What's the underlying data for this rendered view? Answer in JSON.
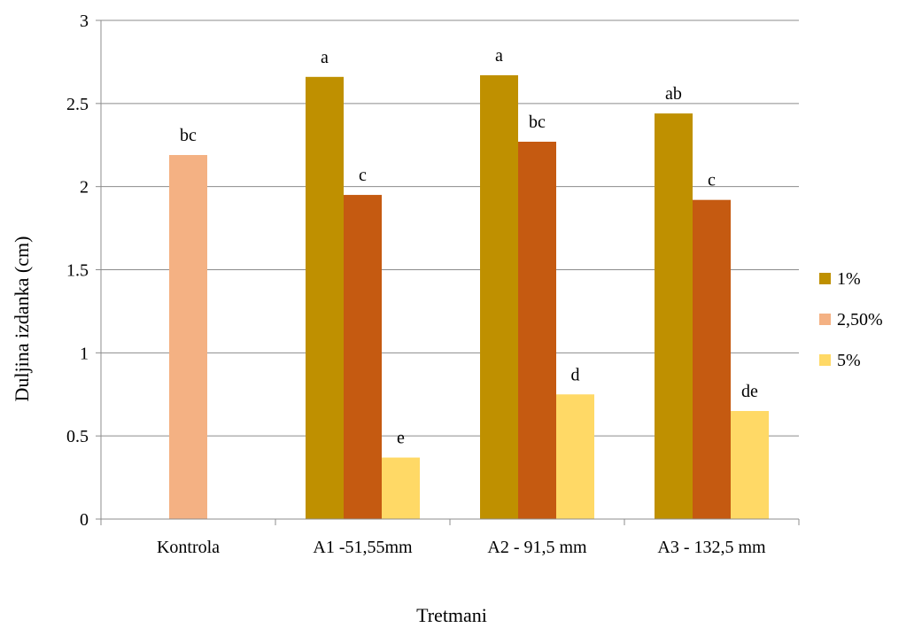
{
  "chart_data": {
    "type": "bar",
    "title": "",
    "xlabel": "Tretmani",
    "ylabel": "Duljina izdanka (cm)",
    "ylim": [
      0,
      3
    ],
    "yticks": [
      "0",
      "0.5",
      "1",
      "1.5",
      "2",
      "2.5",
      "3"
    ],
    "ytick_values": [
      0,
      0.5,
      1,
      1.5,
      2,
      2.5,
      3
    ],
    "categories": [
      "Kontrola",
      "A1 -51,55mm",
      "A2 - 91,5 mm",
      "A3 - 132,5 mm"
    ],
    "grid": true,
    "legend_position": "right",
    "series": [
      {
        "name": "1%",
        "color": "#BF9000",
        "values": [
          null,
          2.66,
          2.67,
          2.44
        ],
        "labels": [
          "",
          "a",
          "a",
          "ab"
        ]
      },
      {
        "name": "2,50%",
        "color": "#F4B183",
        "values": [
          2.19,
          null,
          null,
          null
        ],
        "labels": [
          "bc",
          "",
          "",
          ""
        ]
      },
      {
        "name": "5%",
        "color": "#FFD966",
        "values": [
          null,
          0.37,
          0.75,
          0.65
        ],
        "labels": [
          "",
          "e",
          "d",
          "de"
        ]
      }
    ],
    "extra_bars": [
      {
        "category_index": 1,
        "value": 1.95,
        "label": "c",
        "color": "#C55A11"
      },
      {
        "category_index": 2,
        "value": 2.27,
        "label": "bc",
        "color": "#C55A11"
      },
      {
        "category_index": 3,
        "value": 1.92,
        "label": "c",
        "color": "#C55A11"
      }
    ]
  }
}
